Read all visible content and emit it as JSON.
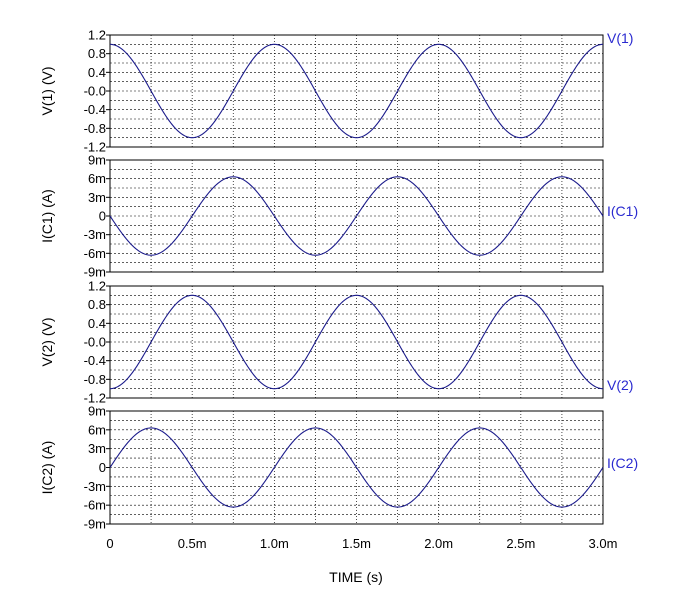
{
  "chart_data": [
    {
      "type": "line",
      "ylabel": "V(1)  (V)",
      "yticks": [
        "1.2",
        "0.8",
        "0.4",
        "-0.0",
        "-0.4",
        "-0.8",
        "-1.2"
      ],
      "ylim": [
        -1.2,
        1.2
      ],
      "xlim": [
        0,
        0.003
      ],
      "grid": true,
      "series": [
        {
          "name": "V(1)",
          "color": "#1c1c8c",
          "function": "cosine",
          "amplitude": 1.0,
          "frequency_hz": 1000,
          "phase_deg": 0
        }
      ]
    },
    {
      "type": "line",
      "ylabel": "I(C1)  (A)",
      "yticks": [
        "9m",
        "6m",
        "3m",
        "0",
        "-3m",
        "-6m",
        "-9m"
      ],
      "ylim": [
        -0.009,
        0.009
      ],
      "xlim": [
        0,
        0.003
      ],
      "grid": true,
      "series": [
        {
          "name": "I(C1)",
          "color": "#1c1c8c",
          "function": "sine",
          "amplitude": 0.0063,
          "frequency_hz": 1000,
          "phase_deg": 180
        }
      ]
    },
    {
      "type": "line",
      "ylabel": "V(2)  (V)",
      "yticks": [
        "1.2",
        "0.8",
        "0.4",
        "-0.0",
        "-0.4",
        "-0.8",
        "-1.2"
      ],
      "ylim": [
        -1.2,
        1.2
      ],
      "xlim": [
        0,
        0.003
      ],
      "grid": true,
      "series": [
        {
          "name": "V(2)",
          "color": "#1c1c8c",
          "function": "cosine",
          "amplitude": 1.0,
          "frequency_hz": 1000,
          "phase_deg": 180
        }
      ]
    },
    {
      "type": "line",
      "ylabel": "I(C2)  (A)",
      "yticks": [
        "9m",
        "6m",
        "3m",
        "0",
        "-3m",
        "-6m",
        "-9m"
      ],
      "ylim": [
        -0.009,
        0.009
      ],
      "xlim": [
        0,
        0.003
      ],
      "grid": true,
      "series": [
        {
          "name": "I(C2)",
          "color": "#1c1c8c",
          "function": "sine",
          "amplitude": 0.0063,
          "frequency_hz": 1000,
          "phase_deg": 0
        }
      ]
    }
  ],
  "x_axis": {
    "label": "TIME  (s)",
    "tick_values": [
      0,
      0.0005,
      0.001,
      0.0015,
      0.002,
      0.0025,
      0.003
    ],
    "tick_labels": [
      "0",
      "0.5m",
      "1.0m",
      "1.5m",
      "2.0m",
      "2.5m",
      "3.0m"
    ]
  },
  "colors": {
    "trace": "#1c1c8c",
    "trace_label": "#2a2ad0",
    "grid": "#000000",
    "background": "#ffffff"
  }
}
